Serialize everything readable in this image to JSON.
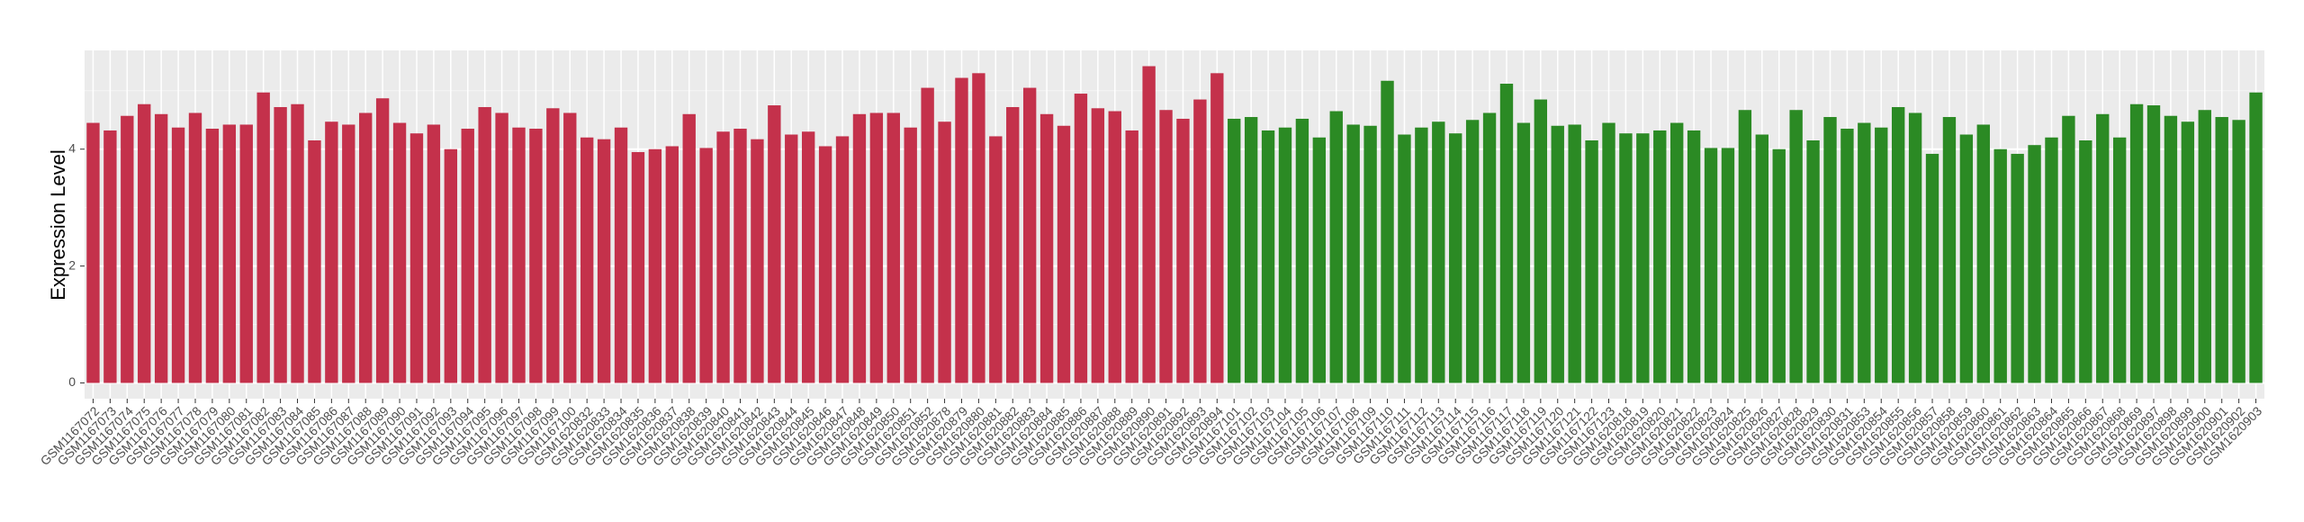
{
  "chart_data": {
    "type": "bar",
    "y_label": "Expression Level",
    "categories": [
      "GSM1167072",
      "GSM1167073",
      "GSM1167074",
      "GSM1167075",
      "GSM1167076",
      "GSM1167077",
      "GSM1167078",
      "GSM1167079",
      "GSM1167080",
      "GSM1167081",
      "GSM1167082",
      "GSM1167083",
      "GSM1167084",
      "GSM1167085",
      "GSM1167086",
      "GSM1167087",
      "GSM1167088",
      "GSM1167089",
      "GSM1167090",
      "GSM1167091",
      "GSM1167092",
      "GSM1167093",
      "GSM1167094",
      "GSM1167095",
      "GSM1167096",
      "GSM1167097",
      "GSM1167098",
      "GSM1167099",
      "GSM1167100",
      "GSM1620832",
      "GSM1620833",
      "GSM1620834",
      "GSM1620835",
      "GSM1620836",
      "GSM1620837",
      "GSM1620838",
      "GSM1620839",
      "GSM1620840",
      "GSM1620841",
      "GSM1620842",
      "GSM1620843",
      "GSM1620844",
      "GSM1620845",
      "GSM1620846",
      "GSM1620847",
      "GSM1620848",
      "GSM1620849",
      "GSM1620850",
      "GSM1620851",
      "GSM1620852",
      "GSM1620878",
      "GSM1620879",
      "GSM1620880",
      "GSM1620881",
      "GSM1620882",
      "GSM1620883",
      "GSM1620884",
      "GSM1620885",
      "GSM1620886",
      "GSM1620887",
      "GSM1620888",
      "GSM1620889",
      "GSM1620890",
      "GSM1620891",
      "GSM1620892",
      "GSM1620893",
      "GSM1620894",
      "GSM1167101",
      "GSM1167102",
      "GSM1167103",
      "GSM1167104",
      "GSM1167105",
      "GSM1167106",
      "GSM1167107",
      "GSM1167108",
      "GSM1167109",
      "GSM1167110",
      "GSM1167111",
      "GSM1167112",
      "GSM1167113",
      "GSM1167114",
      "GSM1167115",
      "GSM1167116",
      "GSM1167117",
      "GSM1167118",
      "GSM1167119",
      "GSM1167120",
      "GSM1167121",
      "GSM1167122",
      "GSM1167123",
      "GSM1620818",
      "GSM1620819",
      "GSM1620820",
      "GSM1620821",
      "GSM1620822",
      "GSM1620823",
      "GSM1620824",
      "GSM1620825",
      "GSM1620826",
      "GSM1620827",
      "GSM1620828",
      "GSM1620829",
      "GSM1620830",
      "GSM1620831",
      "GSM1620853",
      "GSM1620854",
      "GSM1620855",
      "GSM1620856",
      "GSM1620857",
      "GSM1620858",
      "GSM1620859",
      "GSM1620860",
      "GSM1620861",
      "GSM1620862",
      "GSM1620863",
      "GSM1620864",
      "GSM1620865",
      "GSM1620866",
      "GSM1620867",
      "GSM1620868",
      "GSM1620869",
      "GSM1620897",
      "GSM1620898",
      "GSM1620899",
      "GSM1620900",
      "GSM1620901",
      "GSM1620902",
      "GSM1620903"
    ],
    "series": [
      {
        "color": "#c4314b",
        "values": [
          4.45,
          4.32,
          4.57,
          4.77,
          4.6,
          4.37,
          4.62,
          4.35,
          4.42,
          4.42,
          4.97,
          4.72,
          4.77,
          4.15,
          4.47,
          4.42,
          4.62,
          4.87,
          4.45,
          4.27,
          4.42,
          4.0,
          4.35,
          4.72,
          4.62,
          4.37,
          4.35,
          4.7,
          4.62,
          4.2,
          4.17,
          4.37,
          3.95,
          4.0,
          4.05,
          4.6,
          4.02,
          4.3,
          4.35,
          4.17,
          4.75,
          4.25,
          4.3,
          4.05,
          4.22,
          4.6,
          4.62,
          4.62,
          4.37,
          5.05,
          4.47,
          5.22,
          5.3,
          4.22,
          4.72,
          5.05,
          4.6,
          4.4,
          4.95,
          4.7,
          4.65,
          4.32,
          5.42,
          4.67,
          4.52,
          4.85,
          5.3,
          null,
          null,
          null,
          null,
          null,
          null,
          null,
          null,
          null,
          null,
          null,
          null,
          null,
          null,
          null,
          null,
          null,
          null,
          null,
          null,
          null,
          null,
          null,
          null,
          null,
          null,
          null,
          null,
          null,
          null,
          null,
          null,
          null,
          null,
          null,
          null,
          null,
          null,
          null,
          null,
          null,
          null,
          null,
          null,
          null,
          null,
          null,
          null,
          null,
          null,
          null,
          null,
          null,
          null,
          null,
          null,
          null,
          null,
          null,
          null,
          null
        ]
      },
      {
        "color": "#2b8a24",
        "values": [
          null,
          null,
          null,
          null,
          null,
          null,
          null,
          null,
          null,
          null,
          null,
          null,
          null,
          null,
          null,
          null,
          null,
          null,
          null,
          null,
          null,
          null,
          null,
          null,
          null,
          null,
          null,
          null,
          null,
          null,
          null,
          null,
          null,
          null,
          null,
          null,
          null,
          null,
          null,
          null,
          null,
          null,
          null,
          null,
          null,
          null,
          null,
          null,
          null,
          null,
          null,
          null,
          null,
          null,
          null,
          null,
          null,
          null,
          null,
          null,
          null,
          null,
          null,
          null,
          null,
          null,
          null,
          4.52,
          4.55,
          4.32,
          4.37,
          4.52,
          4.2,
          4.65,
          4.42,
          4.4,
          5.17,
          4.25,
          4.37,
          4.47,
          4.27,
          4.5,
          4.62,
          5.12,
          4.45,
          4.85,
          4.4,
          4.42,
          4.15,
          4.45,
          4.27,
          4.27,
          4.32,
          4.45,
          4.32,
          4.02,
          4.02,
          4.67,
          4.25,
          4.0,
          4.67,
          4.15,
          4.55,
          4.35,
          4.45,
          4.37,
          4.72,
          4.62,
          3.92,
          4.55,
          4.25,
          4.42,
          4.0,
          3.92,
          4.07,
          4.2,
          4.57,
          4.15,
          4.6,
          4.2,
          4.77,
          4.75,
          4.57,
          4.47,
          4.67,
          4.55,
          4.5,
          4.97
        ]
      }
    ],
    "ylim": [
      -0.27,
      5.69
    ],
    "yticks": [
      0,
      2,
      4
    ],
    "grid": true
  }
}
